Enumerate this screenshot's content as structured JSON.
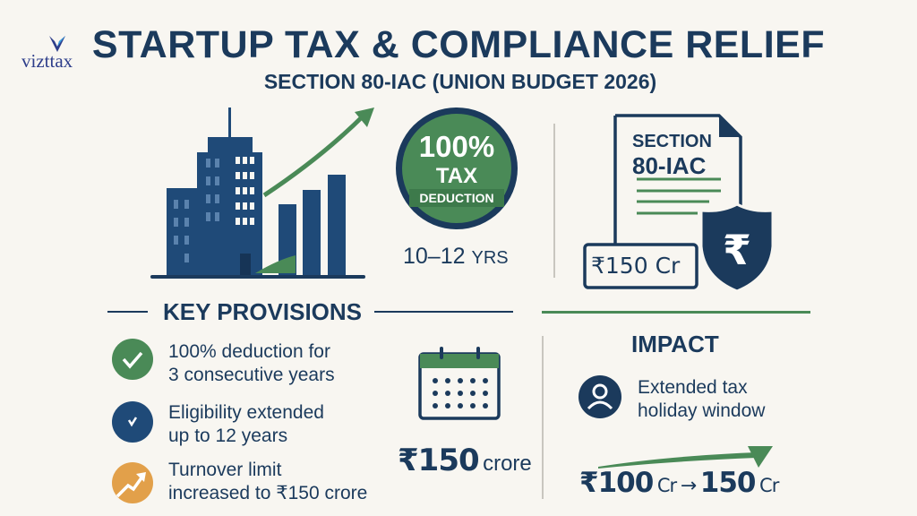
{
  "logo": {
    "text": "vizttax"
  },
  "header": {
    "title": "STARTUP TAX & COMPLIANCE RELIEF",
    "subtitle": "SECTION 80-IAC (UNION BUDGET 2026)"
  },
  "badge": {
    "percent": "100%",
    "line1": "TAX",
    "line2": "DEDUCTION",
    "years": "10–12",
    "years_unit": "YRS"
  },
  "document": {
    "line1": "SECTION",
    "line2": "80-IAC",
    "amount": "₹150 Cr"
  },
  "key_provisions": {
    "heading": "KEY PROVISIONS",
    "items": [
      {
        "icon": "check-icon",
        "line1": "100% deduction for",
        "line2": "3 consecutive years"
      },
      {
        "icon": "clock-check-icon",
        "line1": "Eligibility extended",
        "line2": "up to 12 years"
      },
      {
        "icon": "trend-up-icon",
        "line1": "Turnover limit",
        "line2": "increased to ₹150 crore"
      }
    ],
    "calendar_amount": "₹150",
    "calendar_unit": "crore"
  },
  "impact": {
    "heading": "IMPACT",
    "line1": "Extended tax",
    "line2": "holiday window",
    "from": "₹100",
    "from_unit": "Cr",
    "arrow": "→",
    "to": "150",
    "to_unit": "Cr"
  },
  "colors": {
    "navy": "#1b3a5c",
    "green": "#4a8a57",
    "orange": "#e2a04a",
    "background": "#f8f6f1"
  }
}
